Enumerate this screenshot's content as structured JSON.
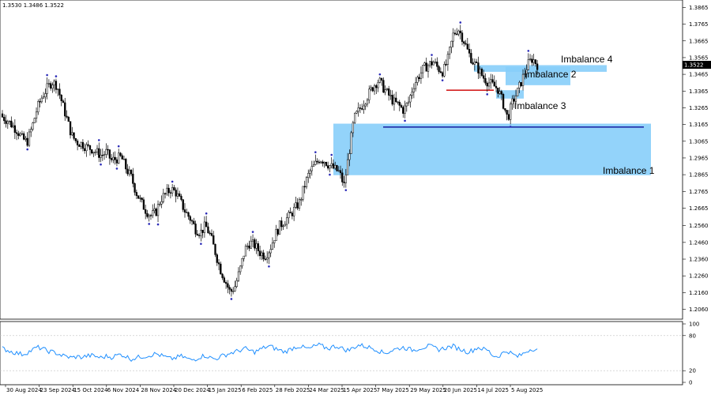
{
  "header": {
    "ohlc_text": "1.3530 1.3486 1.3522"
  },
  "chart_data": {
    "type": "candlestick",
    "symbol_quote": {
      "open": 1.353,
      "low": 1.3486,
      "close": 1.3522
    },
    "current_price_label": "1.3522",
    "price_axis": {
      "range": [
        1.202,
        1.39
      ],
      "ticks": [
        "1.3865",
        "1.3765",
        "1.3665",
        "1.3565",
        "1.3465",
        "1.3365",
        "1.3265",
        "1.3165",
        "1.3065",
        "1.2965",
        "1.2865",
        "1.2765",
        "1.2665",
        "1.2560",
        "1.2460",
        "1.2360",
        "1.2260",
        "1.2160",
        "1.2060"
      ]
    },
    "time_axis_labels": [
      "30 Aug 2024",
      "23 Sep 2024",
      "15 Oct 2024",
      "6 Nov 2024",
      "28 Nov 2024",
      "20 Dec 2024",
      "15 Jan 2025",
      "6 Feb 2025",
      "28 Feb 2025",
      "24 Mar 2025",
      "15 Apr 2025",
      "7 May 2025",
      "29 May 2025",
      "20 Jun 2025",
      "14 Jul 2025",
      "5 Aug 2025"
    ],
    "close_series": [
      1.321,
      1.319,
      1.316,
      1.313,
      1.308,
      1.306,
      1.315,
      1.326,
      1.333,
      1.338,
      1.342,
      1.34,
      1.33,
      1.32,
      1.31,
      1.306,
      1.305,
      1.303,
      1.302,
      1.3,
      1.298,
      1.3,
      1.295,
      1.296,
      1.297,
      1.29,
      1.285,
      1.276,
      1.27,
      1.265,
      1.262,
      1.264,
      1.272,
      1.275,
      1.278,
      1.276,
      1.27,
      1.264,
      1.26,
      1.254,
      1.252,
      1.256,
      1.25,
      1.24,
      1.23,
      1.223,
      1.216,
      1.22,
      1.23,
      1.242,
      1.246,
      1.244,
      1.24,
      1.238,
      1.242,
      1.25,
      1.256,
      1.259,
      1.262,
      1.266,
      1.27,
      1.28,
      1.288,
      1.292,
      1.296,
      1.295,
      1.292,
      1.29,
      1.288,
      1.28,
      1.3,
      1.32,
      1.325,
      1.33,
      1.335,
      1.34,
      1.343,
      1.338,
      1.334,
      1.33,
      1.328,
      1.325,
      1.33,
      1.34,
      1.345,
      1.35,
      1.352,
      1.354,
      1.35,
      1.348,
      1.356,
      1.37,
      1.374,
      1.368,
      1.36,
      1.354,
      1.35,
      1.345,
      1.342,
      1.34,
      1.338,
      1.33,
      1.32,
      1.33,
      1.336,
      1.344,
      1.352,
      1.356,
      1.3522
    ],
    "rsi": {
      "range": [
        0,
        100
      ],
      "ticks": [
        "100",
        "80",
        "20",
        "0"
      ],
      "values": [
        58,
        55,
        52,
        50,
        48,
        51,
        55,
        60,
        58,
        54,
        52,
        50,
        46,
        44,
        42,
        44,
        43,
        45,
        46,
        44,
        42,
        45,
        43,
        46,
        48,
        44,
        40,
        42,
        44,
        45,
        47,
        49,
        46,
        43,
        40,
        42,
        45,
        42,
        38,
        40,
        44,
        46,
        42,
        40,
        44,
        47,
        50,
        52,
        55,
        58,
        54,
        52,
        56,
        60,
        62,
        58,
        55,
        52,
        56,
        60,
        62,
        59,
        57,
        62,
        64,
        60,
        58,
        62,
        61,
        56,
        55,
        60,
        64,
        62,
        60,
        58,
        54,
        50,
        52,
        56,
        58,
        60,
        57,
        55,
        58,
        60,
        62,
        60,
        56,
        58,
        60,
        62,
        58,
        55,
        52,
        55,
        60,
        57,
        55,
        46,
        44,
        50,
        54,
        48,
        44,
        48,
        54,
        58,
        55
      ]
    },
    "annotations": [
      {
        "label": "Imbalance 1",
        "price_range": [
          1.2862,
          1.317
        ]
      },
      {
        "label": "Imbalance 2",
        "price_range": [
          1.34,
          1.351
        ]
      },
      {
        "label": "Imbalance 3",
        "price_range": [
          1.332,
          1.337
        ]
      },
      {
        "label": "Imbalance 4",
        "price_range": [
          1.348,
          1.352
        ]
      }
    ],
    "levels": [
      {
        "name": "blue-horizontal-line",
        "price": 1.315,
        "color": "#1f2aa8"
      },
      {
        "name": "red-horizontal-line",
        "price": 1.337,
        "color": "#d42020"
      }
    ],
    "colors": {
      "candle": "#000000",
      "zone": "#87cefa",
      "rsi_line": "#1f8fff",
      "fractal": "#2b2bb8"
    }
  }
}
